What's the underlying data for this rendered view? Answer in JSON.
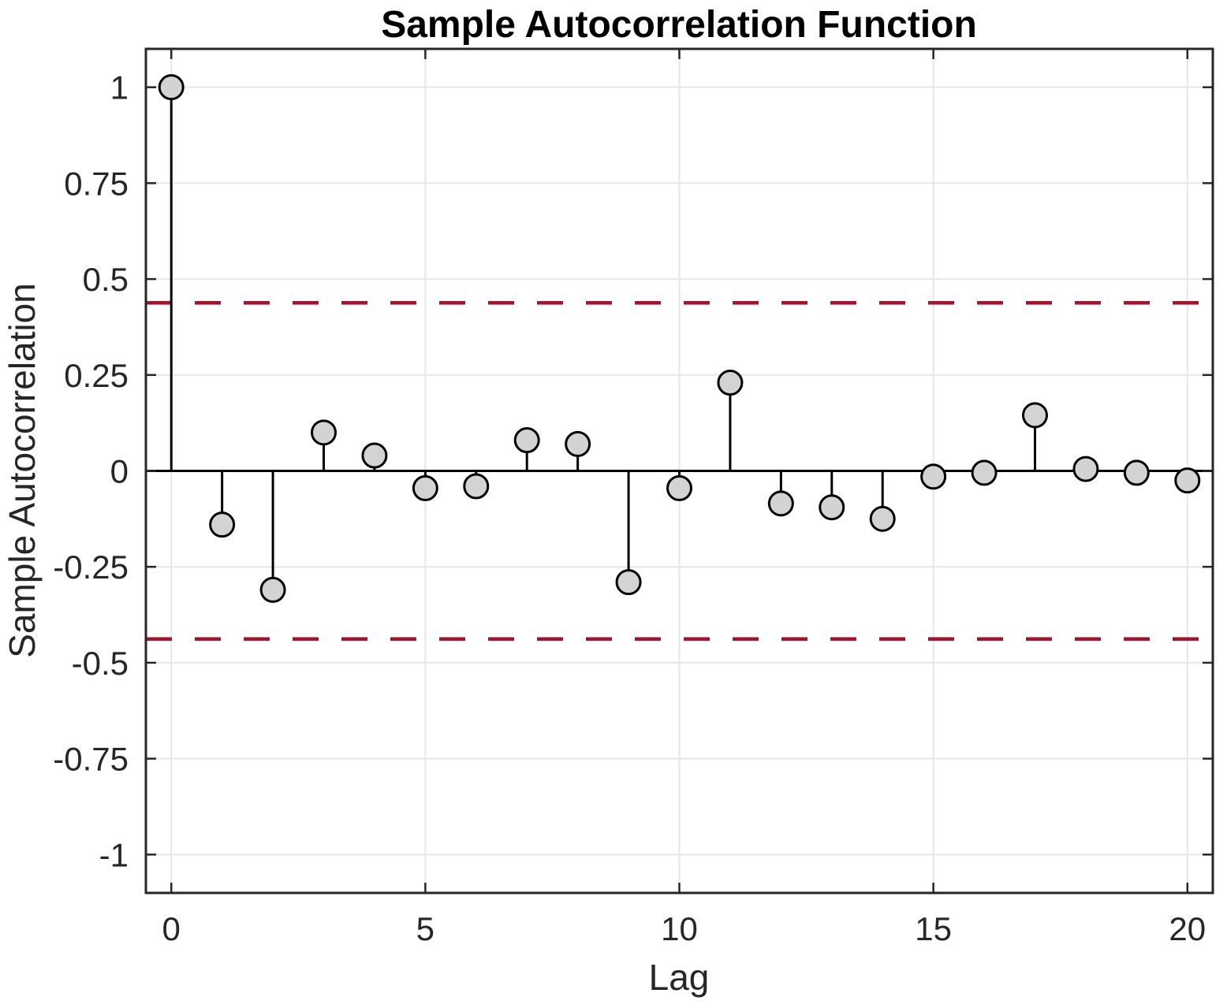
{
  "title": "Sample Autocorrelation Function",
  "xlabel": "Lag",
  "ylabel": "Sample Autocorrelation",
  "chart_data": {
    "type": "stem",
    "title": "Sample Autocorrelation Function",
    "xlabel": "Lag",
    "ylabel": "Sample Autocorrelation",
    "x": [
      0,
      1,
      2,
      3,
      4,
      5,
      6,
      7,
      8,
      9,
      10,
      11,
      12,
      13,
      14,
      15,
      16,
      17,
      18,
      19,
      20
    ],
    "values": [
      1.0,
      -0.14,
      -0.31,
      0.1,
      0.04,
      -0.045,
      -0.04,
      0.08,
      0.07,
      -0.29,
      -0.045,
      0.23,
      -0.085,
      -0.095,
      -0.125,
      -0.015,
      -0.005,
      0.145,
      0.005,
      -0.005,
      -0.025
    ],
    "confidence_upper": 0.438,
    "confidence_lower": -0.438,
    "xlim": [
      -0.5,
      20.5
    ],
    "ylim": [
      -1.1,
      1.1
    ],
    "x_ticks": [
      0,
      5,
      10,
      15,
      20
    ],
    "x_tick_labels": [
      "0",
      "5",
      "10",
      "15",
      "20"
    ],
    "y_ticks": [
      -1,
      -0.75,
      -0.5,
      -0.25,
      0,
      0.25,
      0.5,
      0.75,
      1
    ],
    "y_tick_labels": [
      "-1",
      "-0.75",
      "-0.5",
      "-0.25",
      "0",
      "0.25",
      "0.5",
      "0.75",
      "1"
    ],
    "grid": true,
    "legend": "none",
    "colors": {
      "marker_fill": "#D3D3D3",
      "marker_edge": "#000000",
      "stem_line": "#000000",
      "baseline": "#000000",
      "confidence_line": "#A2142F",
      "grid_line": "#E6E6E6",
      "axis_box": "#262626",
      "tick_label": "#262626",
      "title_color": "#000000"
    }
  }
}
